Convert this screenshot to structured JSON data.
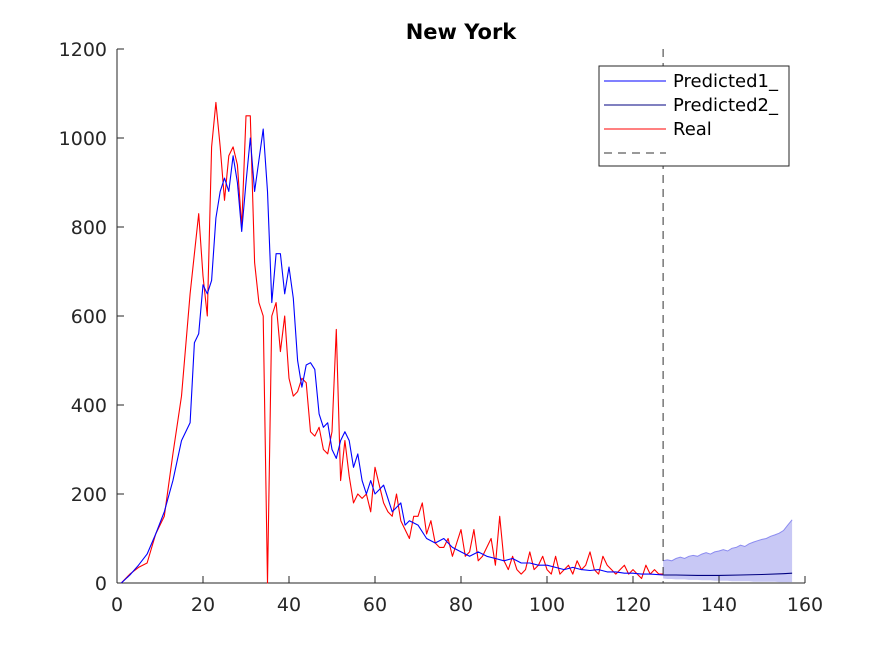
{
  "chart_data": {
    "type": "line",
    "title": "New York",
    "xlabel": "",
    "ylabel": "",
    "xlim": [
      0,
      160
    ],
    "ylim": [
      0,
      1200
    ],
    "xticks": [
      0,
      20,
      40,
      60,
      80,
      100,
      120,
      140,
      160
    ],
    "yticks": [
      0,
      200,
      400,
      600,
      800,
      1000,
      1200
    ],
    "grid": false,
    "legend_position": "top-right",
    "vline_x": 127,
    "colors": {
      "predicted1": "#0000ff",
      "predicted2": "#000080",
      "real": "#ff0000",
      "band": "#c8c8f5",
      "band_edge": "#8c8cf0",
      "vline": "#333333"
    },
    "legend": [
      "Predicted1_",
      "Predicted2_",
      "Real",
      ""
    ],
    "series": [
      {
        "name": "Predicted1_",
        "x": [
          1,
          3,
          5,
          7,
          9,
          11,
          13,
          15,
          17,
          18,
          19,
          20,
          21,
          22,
          23,
          24,
          25,
          26,
          27,
          28,
          29,
          30,
          31,
          32,
          33,
          34,
          35,
          36,
          37,
          38,
          39,
          40,
          41,
          42,
          43,
          44,
          45,
          46,
          47,
          48,
          49,
          50,
          51,
          52,
          53,
          54,
          55,
          56,
          57,
          58,
          59,
          60,
          61,
          62,
          63,
          64,
          65,
          66,
          67,
          68,
          70,
          72,
          74,
          76,
          78,
          80,
          82,
          84,
          86,
          88,
          90,
          92,
          94,
          96,
          98,
          100,
          102,
          104,
          106,
          108,
          110,
          112,
          114,
          116,
          118,
          120,
          122,
          124,
          127
        ],
        "y": [
          0,
          18,
          40,
          65,
          110,
          160,
          230,
          320,
          360,
          540,
          560,
          670,
          650,
          680,
          820,
          880,
          910,
          880,
          960,
          900,
          790,
          900,
          1000,
          880,
          950,
          1020,
          880,
          630,
          740,
          740,
          650,
          710,
          640,
          500,
          440,
          490,
          495,
          480,
          380,
          350,
          360,
          300,
          280,
          320,
          340,
          320,
          260,
          290,
          230,
          200,
          230,
          200,
          210,
          220,
          190,
          160,
          170,
          180,
          130,
          140,
          130,
          100,
          90,
          100,
          80,
          70,
          60,
          70,
          60,
          55,
          50,
          55,
          45,
          45,
          40,
          40,
          35,
          30,
          35,
          30,
          28,
          30,
          25,
          25,
          22,
          22,
          20,
          20,
          18
        ]
      },
      {
        "name": "Predicted2_",
        "x": [
          127,
          130,
          135,
          140,
          145,
          150,
          155,
          157
        ],
        "y": [
          18,
          18,
          17,
          17,
          18,
          19,
          21,
          22
        ]
      },
      {
        "name": "Real",
        "x": [
          1,
          3,
          5,
          7,
          9,
          11,
          13,
          15,
          17,
          19,
          20,
          21,
          22,
          23,
          24,
          25,
          26,
          27,
          28,
          29,
          30,
          31,
          32,
          33,
          34,
          35,
          36,
          37,
          38,
          39,
          40,
          41,
          42,
          43,
          44,
          45,
          46,
          47,
          48,
          49,
          50,
          51,
          52,
          53,
          54,
          55,
          56,
          57,
          58,
          59,
          60,
          61,
          62,
          63,
          64,
          65,
          66,
          67,
          68,
          69,
          70,
          71,
          72,
          73,
          74,
          75,
          76,
          77,
          78,
          79,
          80,
          81,
          82,
          83,
          84,
          85,
          86,
          87,
          88,
          89,
          90,
          91,
          92,
          93,
          94,
          95,
          96,
          97,
          98,
          99,
          100,
          101,
          102,
          103,
          104,
          105,
          106,
          107,
          108,
          109,
          110,
          111,
          112,
          113,
          114,
          115,
          116,
          117,
          118,
          119,
          120,
          121,
          122,
          123,
          124,
          125,
          126,
          127
        ],
        "y": [
          0,
          20,
          35,
          45,
          110,
          150,
          290,
          420,
          650,
          830,
          690,
          600,
          980,
          1080,
          980,
          860,
          960,
          980,
          940,
          800,
          1050,
          1050,
          720,
          630,
          600,
          0,
          600,
          630,
          520,
          600,
          460,
          420,
          430,
          460,
          450,
          340,
          330,
          350,
          300,
          290,
          340,
          570,
          230,
          320,
          240,
          180,
          200,
          190,
          200,
          160,
          260,
          220,
          180,
          160,
          150,
          200,
          140,
          120,
          100,
          150,
          150,
          180,
          110,
          140,
          90,
          80,
          80,
          100,
          60,
          90,
          120,
          60,
          70,
          120,
          50,
          60,
          80,
          100,
          40,
          150,
          50,
          30,
          60,
          30,
          20,
          30,
          70,
          30,
          40,
          60,
          30,
          20,
          60,
          20,
          30,
          40,
          20,
          50,
          30,
          40,
          70,
          30,
          20,
          60,
          40,
          30,
          20,
          30,
          40,
          20,
          30,
          20,
          10,
          40,
          20,
          30,
          20,
          20
        ]
      }
    ],
    "band": {
      "x": [
        127,
        128,
        129,
        130,
        131,
        132,
        133,
        134,
        135,
        136,
        137,
        138,
        139,
        140,
        141,
        142,
        143,
        144,
        145,
        146,
        147,
        148,
        149,
        150,
        151,
        152,
        153,
        154,
        155,
        156,
        157
      ],
      "upper": [
        50,
        52,
        50,
        55,
        58,
        55,
        60,
        62,
        60,
        65,
        68,
        65,
        70,
        72,
        75,
        72,
        78,
        80,
        85,
        82,
        88,
        92,
        95,
        98,
        100,
        105,
        108,
        112,
        118,
        130,
        142
      ],
      "lower": [
        10,
        9,
        9,
        8,
        8,
        8,
        7,
        7,
        7,
        6,
        6,
        6,
        5,
        5,
        5,
        5,
        4,
        4,
        4,
        4,
        4,
        3,
        3,
        3,
        3,
        3,
        3,
        2,
        2,
        2,
        2
      ]
    }
  }
}
